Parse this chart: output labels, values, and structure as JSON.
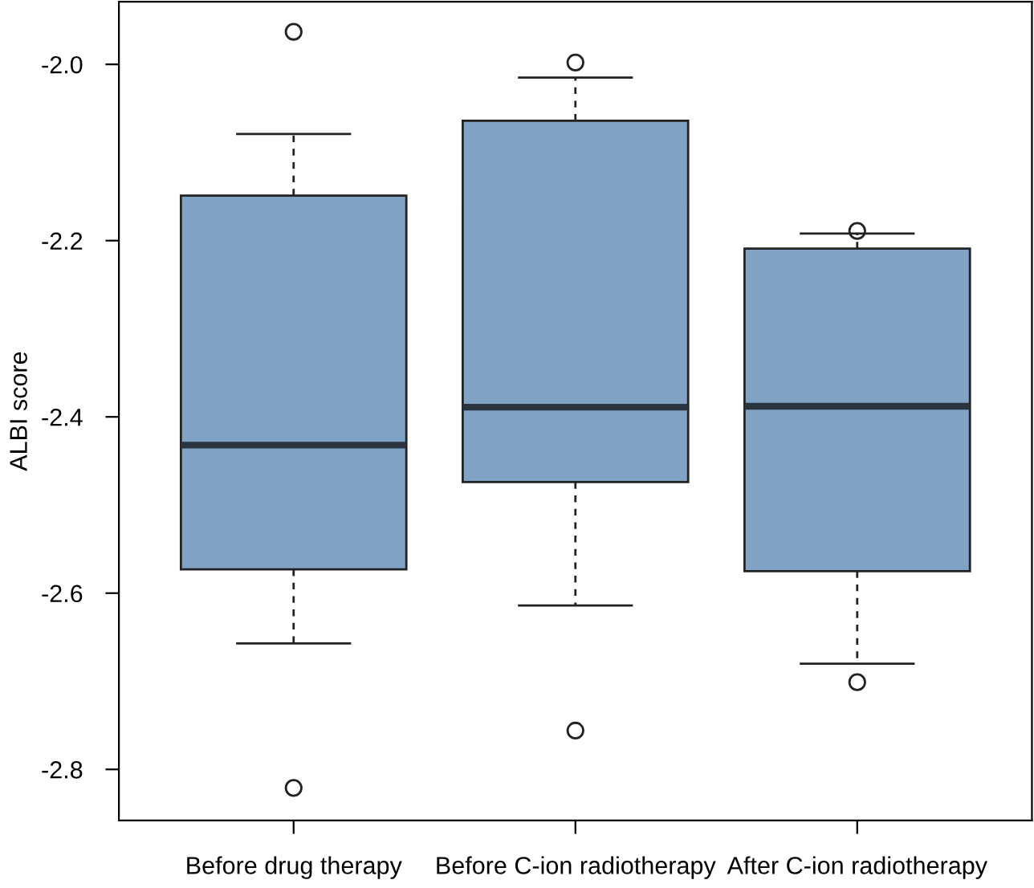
{
  "chart_data": {
    "type": "box",
    "ylabel": "ALBI score",
    "categories": [
      "Before drug therapy",
      "Before C-ion radiotherapy",
      "After C-ion radiotherapy"
    ],
    "boxes": [
      {
        "low": -2.657,
        "q1": -2.573,
        "median": -2.432,
        "q3": -2.149,
        "high": -2.079,
        "outliers": [
          -1.963,
          -2.821
        ]
      },
      {
        "low": -2.614,
        "q1": -2.474,
        "median": -2.389,
        "q3": -2.064,
        "high": -2.015,
        "outliers": [
          -1.998,
          -2.756
        ]
      },
      {
        "low": -2.68,
        "q1": -2.575,
        "median": -2.388,
        "q3": -2.209,
        "high": -2.192,
        "outliers": [
          -2.189,
          -2.701
        ]
      }
    ],
    "color": "#7fa2c5",
    "ylim": [
      -2.858,
      -1.929
    ],
    "yticks": [
      {
        "value": -2.0,
        "label": "-2.0"
      },
      {
        "value": -2.2,
        "label": "-2.2"
      },
      {
        "value": -2.4,
        "label": "-2.4"
      },
      {
        "value": -2.6,
        "label": "-2.6"
      },
      {
        "value": -2.8,
        "label": "-2.8"
      }
    ],
    "grid": false
  }
}
